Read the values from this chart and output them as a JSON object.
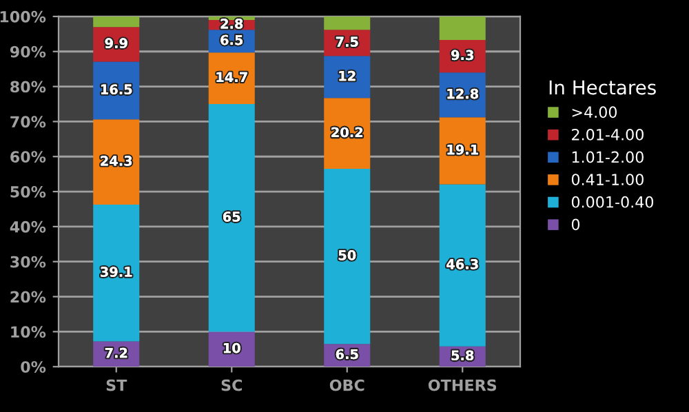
{
  "chart_data": {
    "type": "bar",
    "stacked": true,
    "legend_title": "In Hectares",
    "legend": "right",
    "categories": [
      "ST",
      "SC",
      "OBC",
      "OTHERS"
    ],
    "series": [
      {
        "name": "0",
        "color": "#7a4fa8",
        "values": [
          7.2,
          10,
          6.5,
          5.8
        ],
        "value_labels": [
          "7.2",
          "10",
          "6.5",
          "5.8"
        ]
      },
      {
        "name": "0.001-0.40",
        "color": "#1eb0d6",
        "values": [
          39.1,
          65,
          50,
          46.3
        ],
        "value_labels": [
          "39.1",
          "65",
          "50",
          "46.3"
        ]
      },
      {
        "name": "0.41-1.00",
        "color": "#f07d12",
        "values": [
          24.3,
          14.7,
          20.2,
          19.1
        ],
        "value_labels": [
          "24.3",
          "14.7",
          "20.2",
          "19.1"
        ]
      },
      {
        "name": "1.01-2.00",
        "color": "#2466c0",
        "values": [
          16.5,
          6.5,
          12,
          12.8
        ],
        "value_labels": [
          "16.5",
          "6.5",
          "12",
          "12.8"
        ]
      },
      {
        "name": "2.01-4.00",
        "color": "#c0242c",
        "values": [
          9.9,
          2.8,
          7.5,
          9.3
        ],
        "value_labels": [
          "9.9",
          "2.8",
          "7.5",
          "9.3"
        ]
      },
      {
        "name": ">4.00",
        "color": "#86b23a",
        "values": [
          3.0,
          1.0,
          3.8,
          6.7
        ],
        "value_labels": [
          null,
          null,
          null,
          null
        ]
      }
    ],
    "ylim": [
      0,
      100
    ],
    "yticks": [
      {
        "value": 0,
        "label": "0%"
      },
      {
        "value": 10,
        "label": "10%"
      },
      {
        "value": 20,
        "label": "20%"
      },
      {
        "value": 30,
        "label": "30%"
      },
      {
        "value": 40,
        "label": "40%"
      },
      {
        "value": 50,
        "label": "50%"
      },
      {
        "value": 60,
        "label": "60%"
      },
      {
        "value": 70,
        "label": "70%"
      },
      {
        "value": 80,
        "label": "80%"
      },
      {
        "value": 90,
        "label": "90%"
      },
      {
        "value": 100,
        "label": "100%"
      }
    ],
    "grid": "y"
  }
}
